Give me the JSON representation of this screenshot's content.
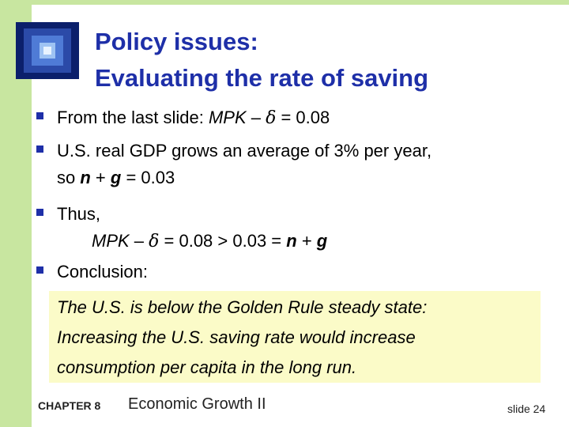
{
  "title": {
    "line1": "Policy issues:",
    "line2": "Evaluating the rate of saving"
  },
  "bullets": [
    {
      "prefix": "From the last slide:  ",
      "expr1": "MPK",
      "minus": " – ",
      "delta": "δ",
      "rest": "  = 0.08"
    },
    {
      "line1": "U.S. real GDP grows an average of 3% per year,",
      "line2_prefix": "so  ",
      "n": "n",
      "plus": " + ",
      "g": "g",
      "line2_rest": "  = 0.03"
    },
    {
      "line1": "Thus,",
      "expr1": "MPK",
      "minus": " – ",
      "delta": "δ",
      "mid": "  = 0.08 > 0.03 = ",
      "n": "n",
      "plus": " + ",
      "g": "g"
    },
    {
      "label": "Conclusion:"
    }
  ],
  "conclusion": {
    "line1": "The U.S. is below the Golden Rule steady state:",
    "line2": "Increasing the U.S. saving rate would increase",
    "line3": "consumption per capita in the long run."
  },
  "footer": {
    "chapter": "CHAPTER 8",
    "topic": "Economic Growth II",
    "slide": "slide 24"
  },
  "colors": {
    "accent": "#1e2fa8",
    "bar": "#c8e6a0",
    "highlight": "#fbfbc8"
  },
  "icons": {
    "logo": "nested-squares-logo-icon",
    "bullet": "square-bullet-icon"
  }
}
